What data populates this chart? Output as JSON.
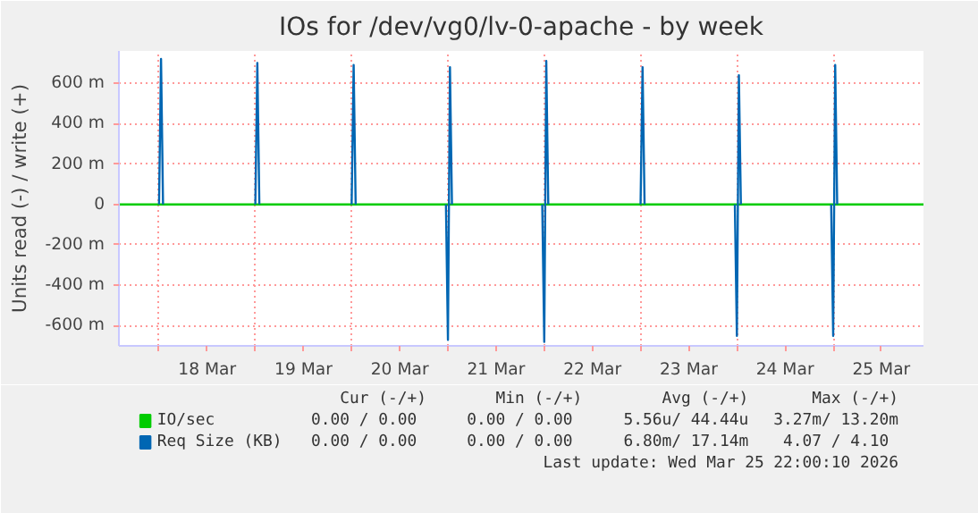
{
  "chart_data": {
    "type": "line",
    "title": "IOs for /dev/vg0/lv-0-apache - by week",
    "ylabel": "Units read (-) / write (+)",
    "xlim": [
      "2026-03-17T14:00",
      "2026-03-25T22:30"
    ],
    "ylim": [
      -700,
      760
    ],
    "xticks": [
      {
        "value": "2026-03-18T00:00",
        "label": null
      },
      {
        "value": "2026-03-18T12:00",
        "label": "18 Mar"
      },
      {
        "value": "2026-03-19T00:00",
        "label": null
      },
      {
        "value": "2026-03-19T12:00",
        "label": "19 Mar"
      },
      {
        "value": "2026-03-20T00:00",
        "label": null
      },
      {
        "value": "2026-03-20T12:00",
        "label": "20 Mar"
      },
      {
        "value": "2026-03-21T00:00",
        "label": null
      },
      {
        "value": "2026-03-21T12:00",
        "label": "21 Mar"
      },
      {
        "value": "2026-03-22T00:00",
        "label": null
      },
      {
        "value": "2026-03-22T12:00",
        "label": "22 Mar"
      },
      {
        "value": "2026-03-23T00:00",
        "label": null
      },
      {
        "value": "2026-03-23T12:00",
        "label": "23 Mar"
      },
      {
        "value": "2026-03-24T00:00",
        "label": null
      },
      {
        "value": "2026-03-24T12:00",
        "label": "24 Mar"
      },
      {
        "value": "2026-03-25T00:00",
        "label": null
      },
      {
        "value": "2026-03-25T12:00",
        "label": "25 Mar"
      }
    ],
    "yticks": [
      {
        "value": -600,
        "label": "-600 m"
      },
      {
        "value": -400,
        "label": "-400 m"
      },
      {
        "value": -200,
        "label": "-200 m"
      },
      0,
      {
        "value": 200,
        "label": "200 m"
      },
      {
        "value": 400,
        "label": "400 m"
      },
      {
        "value": 600,
        "label": "600 m"
      }
    ],
    "grid": true,
    "legend": "bottom left",
    "series": [
      {
        "name": "IO/sec",
        "color": "#00cc00",
        "x": [
          "2026-03-17T14:00",
          "2026-03-25T22:30"
        ],
        "values": [
          0,
          0
        ]
      },
      {
        "name": "Req Size (KB)",
        "color": "#0066b3",
        "x": [
          "2026-03-18T00:00",
          "2026-03-18T00:30",
          "2026-03-18T01:00",
          "2026-03-18T12:00",
          "2026-03-19T00:00",
          "2026-03-19T00:30",
          "2026-03-19T01:00",
          "2026-03-19T12:00",
          "2026-03-20T00:00",
          "2026-03-20T00:30",
          "2026-03-20T01:00",
          "2026-03-20T12:00",
          "2026-03-20T23:30",
          "2026-03-21T00:00",
          "2026-03-21T00:30",
          "2026-03-21T01:00",
          "2026-03-21T12:00",
          "2026-03-21T23:30",
          "2026-03-22T00:00",
          "2026-03-22T00:30",
          "2026-03-22T01:00",
          "2026-03-22T12:00",
          "2026-03-23T00:00",
          "2026-03-23T00:30",
          "2026-03-23T01:00",
          "2026-03-23T12:00",
          "2026-03-23T23:30",
          "2026-03-24T00:00",
          "2026-03-24T00:30",
          "2026-03-24T01:00",
          "2026-03-24T12:00",
          "2026-03-24T23:30",
          "2026-03-25T00:00",
          "2026-03-25T00:30",
          "2026-03-25T01:00"
        ],
        "values": [
          0,
          720,
          0,
          null,
          0,
          700,
          0,
          null,
          0,
          690,
          0,
          null,
          0,
          -670,
          680,
          0,
          null,
          0,
          -680,
          710,
          0,
          null,
          0,
          680,
          0,
          null,
          0,
          -650,
          640,
          0,
          null,
          0,
          -650,
          690,
          0
        ]
      }
    ],
    "annotations": [
      "Cur (-/+)",
      "Min (-/+)",
      "Avg (-/+)",
      "Max (-/+)",
      "0.00 /  0.00",
      "0.00 /  0.00",
      "5.56u/ 44.44u",
      "3.27m/ 13.20m",
      "0.00 /  0.00",
      "0.00 /  0.00",
      "6.80m/ 17.14m",
      "4.07 /  4.10",
      "Last update: Wed Mar 25 22:00:10 2026"
    ]
  }
}
